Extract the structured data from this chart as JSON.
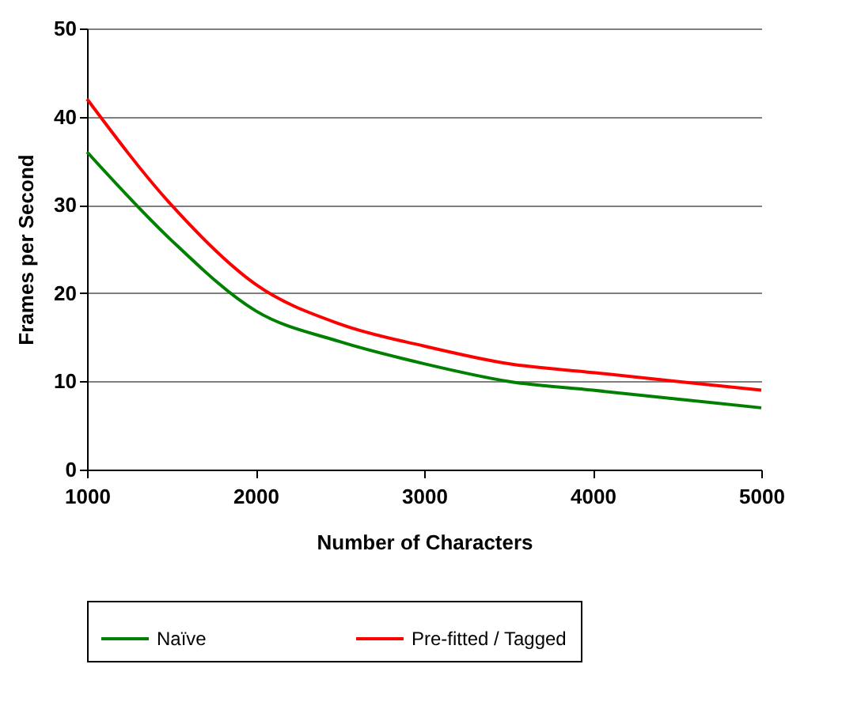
{
  "chart_data": {
    "type": "line",
    "xlabel": "Number of Characters",
    "ylabel": "Frames per Second",
    "x": [
      1000,
      1500,
      2000,
      2500,
      3000,
      3500,
      4000,
      4500,
      5000
    ],
    "series": [
      {
        "name": "Naïve",
        "color": "#008000",
        "values": [
          36,
          26,
          18,
          14.5,
          12,
          10,
          9,
          8,
          7
        ]
      },
      {
        "name": "Pre-fitted / Tagged",
        "color": "#ff0000",
        "values": [
          42,
          30,
          21,
          16.5,
          14,
          12,
          11,
          10,
          9
        ]
      }
    ],
    "xlim": [
      1000,
      5000
    ],
    "ylim": [
      0,
      50
    ],
    "xticks": [
      1000,
      2000,
      3000,
      4000,
      5000
    ],
    "yticks": [
      0,
      10,
      20,
      30,
      40,
      50
    ],
    "grid": "y",
    "legend": "bottom",
    "marker": "none",
    "line_style": "solid"
  }
}
